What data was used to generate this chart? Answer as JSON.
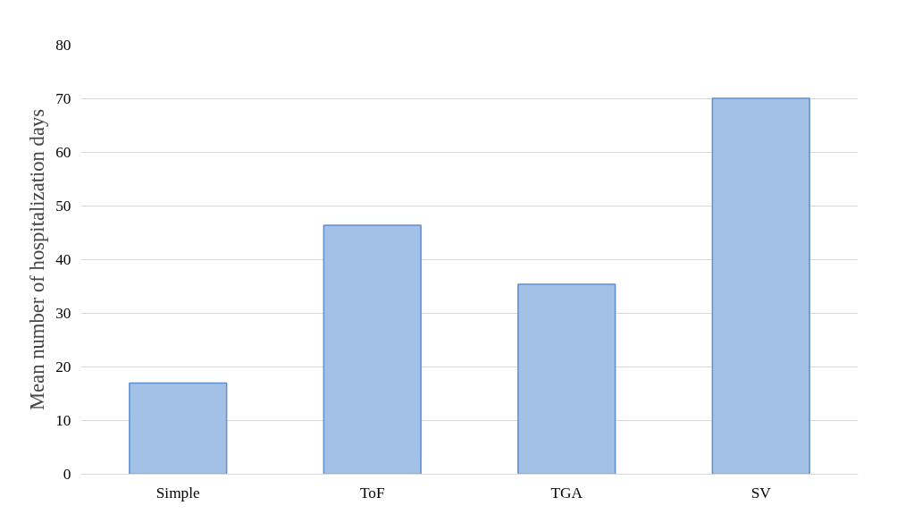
{
  "chart_data": {
    "type": "bar",
    "ylabel": "Mean number of hospitalization days",
    "categories": [
      "Simple",
      "ToF",
      "TGA",
      "SV"
    ],
    "values": [
      17,
      46.4,
      35.4,
      70.1
    ],
    "color": "#a3c0e6",
    "ylim": [
      0,
      80
    ],
    "yticks": [
      0,
      10,
      20,
      30,
      40,
      50,
      60,
      70,
      80
    ],
    "grid": "y"
  }
}
